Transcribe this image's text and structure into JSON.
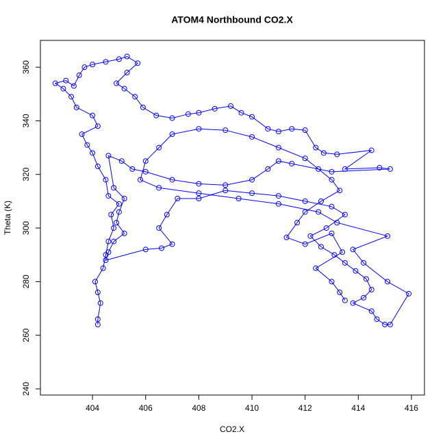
{
  "chart_data": {
    "type": "scatter-line",
    "title": "ATOM4 Northbound CO2.X",
    "x_label": "CO2.X",
    "y_label": "Theta (K)",
    "color": "#0000ff",
    "xlim": [
      402.04,
      416.49
    ],
    "ylim": [
      237.7,
      370
    ],
    "xticks": [
      404,
      406,
      408,
      410,
      412,
      414,
      416
    ],
    "yticks": [
      240,
      260,
      280,
      300,
      320,
      340,
      360
    ],
    "x": [
      404.2,
      404.2,
      404.3,
      404.2,
      404.1,
      404.4,
      404.5,
      404.6,
      404.8,
      404.7,
      405,
      404.6,
      404.5,
      404.2,
      404,
      403.8,
      403.6,
      404.2,
      404,
      403.4,
      403.2,
      402.9,
      402.6,
      403,
      403.3,
      403.5,
      403.7,
      404,
      404.5,
      405,
      405.3,
      405.7,
      405.3,
      404.9,
      405.2,
      405.6,
      405.9,
      406.4,
      407,
      407.6,
      408,
      408.6,
      409.2,
      409.6,
      410,
      410.6,
      411,
      411.5,
      412,
      412.4,
      412.7,
      413.2,
      414.5,
      413.5,
      414.8,
      415.2,
      413,
      411.5,
      411,
      410.6,
      410,
      409,
      408,
      407,
      406,
      405.5,
      405.1,
      404.6,
      404.8,
      405.2,
      405,
      404.9,
      405.2,
      404.8,
      404.6,
      404.5,
      406,
      406.6,
      407,
      406.5,
      406.8,
      407.2,
      408,
      409,
      410,
      411,
      412,
      413,
      413.5,
      412.8,
      412.2,
      412.6,
      413.1,
      413.5,
      413.9,
      414.3,
      414.5,
      414.2,
      413.8,
      414.5,
      414.7,
      415,
      415.2,
      415.9,
      415.1,
      414.2,
      413.8,
      415.1,
      413.2,
      412.5,
      411,
      409.5,
      408,
      406.5,
      405.8,
      406,
      406.5,
      407,
      408,
      409,
      410,
      411,
      412,
      412.5,
      413,
      413.3,
      412.6,
      412,
      411.7,
      411.3,
      412,
      413,
      413.4,
      412.4,
      413,
      413.3,
      413.5
    ],
    "values": [
      264,
      266,
      272,
      276,
      280,
      285,
      290,
      295,
      300,
      305,
      309,
      312,
      318,
      323,
      328,
      331,
      335,
      338,
      342,
      345,
      349,
      352,
      354,
      355,
      353,
      357,
      360,
      361,
      362,
      363,
      364,
      361.5,
      358,
      354,
      352,
      349,
      345,
      342,
      341,
      342.5,
      343,
      344.5,
      345.5,
      343,
      341.5,
      337,
      336,
      337,
      336.5,
      330,
      328,
      327.5,
      329,
      322,
      322.5,
      322,
      321,
      324,
      325,
      322,
      318,
      316,
      316.5,
      318,
      321,
      322,
      325,
      327,
      315,
      311,
      306,
      302,
      298,
      295,
      291,
      288,
      292,
      292.5,
      294,
      300,
      305,
      311,
      311,
      314,
      313,
      312,
      310,
      308,
      305,
      300,
      297,
      293,
      290,
      287,
      284,
      281,
      277,
      274,
      272,
      269,
      266,
      264,
      264,
      275.5,
      280,
      287,
      292,
      297,
      302,
      306,
      309,
      311,
      313,
      315,
      318,
      325,
      330,
      335,
      337,
      336.5,
      334,
      330,
      326,
      322,
      318,
      314,
      310,
      306,
      302,
      296.5,
      294,
      298,
      291,
      285,
      280,
      276,
      273
    ]
  }
}
